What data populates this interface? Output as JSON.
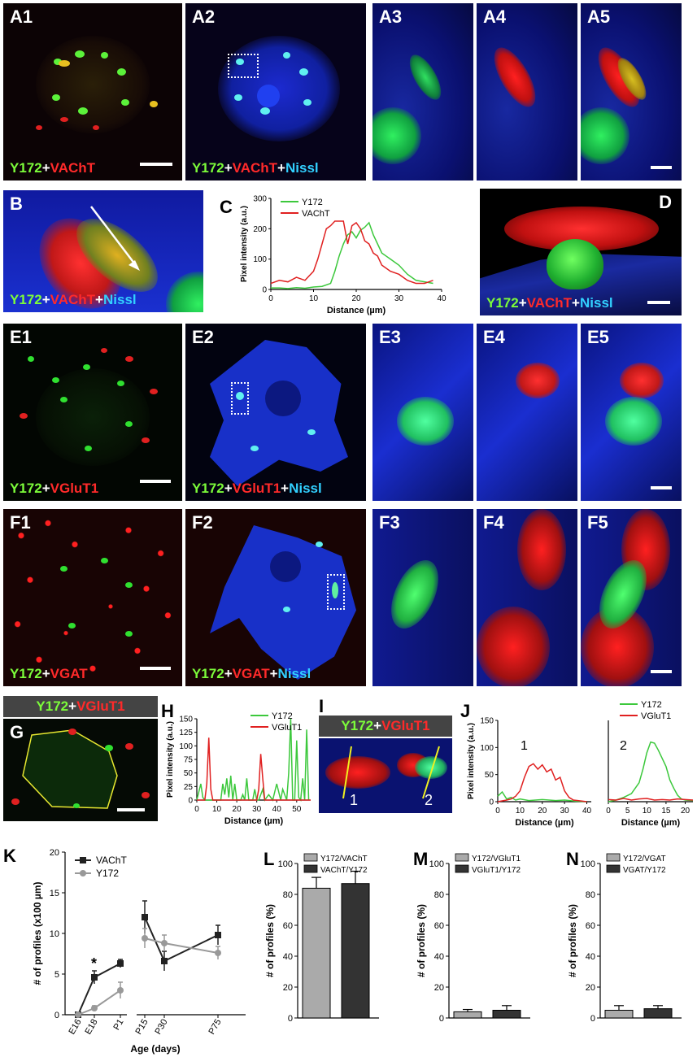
{
  "labels": {
    "A1": "A1",
    "A2": "A2",
    "A3": "A3",
    "A4": "A4",
    "A5": "A5",
    "B": "B",
    "C": "C",
    "D": "D",
    "E1": "E1",
    "E2": "E2",
    "E3": "E3",
    "E4": "E4",
    "E5": "E5",
    "F1": "F1",
    "F2": "F2",
    "F3": "F3",
    "F4": "F4",
    "F5": "F5",
    "G": "G",
    "H": "H",
    "I": "I",
    "J": "J",
    "K": "K",
    "L": "L",
    "M": "M",
    "N": "N"
  },
  "captions": {
    "y172": "Y172",
    "plus": "+",
    "vacht": "VAChT",
    "nissl": "Nissl",
    "vglut1": "VGluT1",
    "vgat": "VGAT"
  },
  "colors": {
    "green": "#7CFC3A",
    "red": "#ff2a2a",
    "cyan": "#32d0ff",
    "blue": "#1428c8"
  },
  "chart_data": [
    {
      "id": "C",
      "type": "line",
      "xlabel": "Distance (µm)",
      "ylabel": "Pixel intensity (a.u.)",
      "xlim": [
        0,
        40
      ],
      "ylim": [
        0,
        300
      ],
      "xticks": [
        0,
        10,
        20,
        30,
        40
      ],
      "yticks": [
        0,
        100,
        200,
        300
      ],
      "legend_position": "top-right",
      "series": [
        {
          "name": "Y172",
          "color": "#3cc83c",
          "x": [
            0,
            2,
            4,
            6,
            8,
            10,
            12,
            14,
            15,
            16,
            17,
            18,
            19,
            20,
            21,
            22,
            23,
            24,
            25,
            26,
            27,
            28,
            30,
            32,
            34,
            36,
            38
          ],
          "y": [
            5,
            5,
            3,
            6,
            4,
            8,
            10,
            20,
            60,
            110,
            150,
            180,
            190,
            170,
            195,
            205,
            220,
            180,
            150,
            120,
            110,
            100,
            80,
            50,
            30,
            25,
            20
          ]
        },
        {
          "name": "VAChT",
          "color": "#e02020",
          "x": [
            0,
            2,
            4,
            6,
            8,
            10,
            11,
            12,
            13,
            14,
            15,
            16,
            17,
            18,
            19,
            20,
            21,
            22,
            23,
            24,
            25,
            26,
            28,
            30,
            32,
            34,
            36,
            38
          ],
          "y": [
            20,
            30,
            25,
            40,
            30,
            60,
            100,
            150,
            200,
            210,
            225,
            225,
            225,
            150,
            210,
            220,
            200,
            160,
            150,
            120,
            110,
            80,
            60,
            50,
            30,
            20,
            20,
            30
          ]
        }
      ]
    },
    {
      "id": "H",
      "type": "line",
      "xlabel": "Distance (µm)",
      "ylabel": "Pixel intensity (a.u.)",
      "xlim": [
        0,
        57
      ],
      "ylim": [
        0,
        150
      ],
      "xticks": [
        0,
        10,
        20,
        30,
        40,
        50
      ],
      "yticks": [
        0,
        25,
        50,
        75,
        100,
        125,
        150
      ],
      "legend_position": "top-right",
      "series": [
        {
          "name": "Y172",
          "color": "#3cc83c",
          "x": [
            0,
            2,
            3,
            4,
            5,
            6,
            7,
            8,
            10,
            12,
            13,
            14,
            15,
            16,
            17,
            18,
            19,
            20,
            22,
            23,
            24,
            25,
            26,
            28,
            29,
            30,
            31,
            32,
            33,
            34,
            36,
            38,
            40,
            42,
            43,
            44,
            45,
            46,
            47,
            48,
            49,
            50,
            51,
            52,
            53,
            54,
            55,
            56
          ],
          "y": [
            0,
            30,
            5,
            0,
            0,
            0,
            0,
            0,
            0,
            0,
            30,
            10,
            40,
            5,
            45,
            0,
            30,
            0,
            0,
            10,
            0,
            40,
            0,
            0,
            20,
            0,
            0,
            10,
            20,
            0,
            10,
            0,
            30,
            0,
            20,
            10,
            0,
            50,
            150,
            0,
            0,
            110,
            5,
            0,
            40,
            0,
            130,
            0
          ]
        },
        {
          "name": "VGluT1",
          "color": "#e02020",
          "x": [
            0,
            4,
            5,
            6,
            7,
            8,
            10,
            30,
            31,
            32,
            33,
            34,
            35,
            40,
            57
          ],
          "y": [
            0,
            0,
            30,
            115,
            20,
            0,
            0,
            0,
            20,
            85,
            40,
            0,
            0,
            0,
            0
          ]
        }
      ]
    },
    {
      "id": "J",
      "type": "line",
      "xlabel": "Distance (µm)",
      "ylabel": "Pixel intensity (a.u.)",
      "ylim": [
        0,
        150
      ],
      "yticks": [
        0,
        50,
        100,
        150
      ],
      "profile_labels": [
        "1",
        "2"
      ],
      "legend_position": "top-right",
      "subplots": [
        {
          "xlim": [
            0,
            42
          ],
          "xticks": [
            0,
            10,
            20,
            30,
            40
          ],
          "series": [
            {
              "name": "Y172",
              "color": "#3cc83c",
              "x": [
                0,
                2,
                4,
                6,
                8,
                10,
                14,
                20,
                26,
                30,
                35,
                40
              ],
              "y": [
                10,
                18,
                5,
                8,
                3,
                5,
                2,
                4,
                2,
                3,
                1,
                0
              ]
            },
            {
              "name": "VGluT1",
              "color": "#e02020",
              "x": [
                0,
                4,
                6,
                8,
                10,
                12,
                14,
                16,
                18,
                20,
                22,
                24,
                26,
                28,
                30,
                32,
                34,
                36,
                40
              ],
              "y": [
                0,
                3,
                5,
                10,
                20,
                45,
                65,
                70,
                60,
                68,
                55,
                60,
                40,
                45,
                20,
                8,
                3,
                2,
                0
              ]
            }
          ]
        },
        {
          "xlim": [
            0,
            22
          ],
          "xticks": [
            0,
            5,
            10,
            15,
            20
          ],
          "series": [
            {
              "name": "Y172",
              "color": "#3cc83c",
              "x": [
                0,
                2,
                4,
                6,
                8,
                9,
                10,
                11,
                12,
                13,
                14,
                15,
                16,
                17,
                18,
                19,
                20,
                22
              ],
              "y": [
                0,
                3,
                8,
                15,
                35,
                60,
                90,
                110,
                108,
                95,
                80,
                65,
                40,
                25,
                12,
                5,
                3,
                2
              ]
            },
            {
              "name": "VGluT1",
              "color": "#e02020",
              "x": [
                0,
                2,
                4,
                6,
                8,
                10,
                12,
                14,
                16,
                18,
                20,
                22
              ],
              "y": [
                4,
                3,
                6,
                3,
                5,
                6,
                3,
                4,
                3,
                5,
                4,
                3
              ]
            }
          ]
        }
      ]
    },
    {
      "id": "K",
      "type": "line",
      "xlabel": "Age (days)",
      "ylabel": "# of profiles (x100 µm)",
      "ylim": [
        0,
        20
      ],
      "yticks": [
        0,
        5,
        10,
        15,
        20
      ],
      "categories": [
        "E16",
        "E18",
        "P1",
        "P15",
        "P30",
        "P75"
      ],
      "annotation": "*",
      "legend_position": "top-left",
      "series": [
        {
          "name": "VAChT",
          "color": "#222222",
          "values": [
            0,
            4.6,
            6.3,
            12,
            6.6,
            9.8
          ],
          "errors": [
            0,
            0.8,
            0.5,
            2,
            1.2,
            1.2
          ]
        },
        {
          "name": "Y172",
          "color": "#999999",
          "values": [
            0,
            0.8,
            3,
            9.4,
            8.8,
            7.6
          ],
          "errors": [
            0,
            0.3,
            1,
            1.2,
            1,
            0.8
          ]
        }
      ]
    },
    {
      "id": "L",
      "type": "bar",
      "ylabel": "# of profiles (%)",
      "ylim": [
        0,
        100
      ],
      "yticks": [
        0,
        20,
        40,
        60,
        80,
        100
      ],
      "legend_position": "top",
      "series": [
        {
          "name": "Y172/VAChT",
          "color": "#aaaaaa",
          "value": 84,
          "error": 7
        },
        {
          "name": "VAChT/Y172",
          "color": "#333333",
          "value": 87,
          "error": 8
        }
      ]
    },
    {
      "id": "M",
      "type": "bar",
      "ylabel": "# of profiles (%)",
      "ylim": [
        0,
        100
      ],
      "yticks": [
        0,
        20,
        40,
        60,
        80,
        100
      ],
      "legend_position": "top",
      "series": [
        {
          "name": "Y172/VGluT1",
          "color": "#aaaaaa",
          "value": 4,
          "error": 1.5
        },
        {
          "name": "VGluT1/Y172",
          "color": "#333333",
          "value": 5,
          "error": 3
        }
      ]
    },
    {
      "id": "N",
      "type": "bar",
      "ylabel": "# of profiles (%)",
      "ylim": [
        0,
        100
      ],
      "yticks": [
        0,
        20,
        40,
        60,
        80,
        100
      ],
      "legend_position": "top",
      "series": [
        {
          "name": "Y172/VGAT",
          "color": "#aaaaaa",
          "value": 5,
          "error": 3
        },
        {
          "name": "VGAT/Y172",
          "color": "#333333",
          "value": 6,
          "error": 2
        }
      ]
    }
  ]
}
